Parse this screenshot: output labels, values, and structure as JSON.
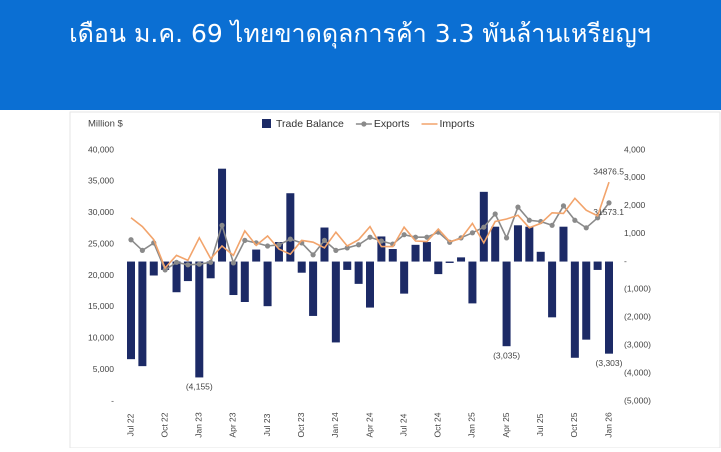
{
  "chart_data": {
    "type": "bar",
    "title": "เดือน ม.ค. 69 ไทยขาดดุลการค้า 3.3 พันล้านเหรียญฯ",
    "y_label": "Million $",
    "categories": [
      "Jul 22",
      null,
      null,
      "Oct 22",
      null,
      null,
      "Jan 23",
      null,
      null,
      "Apr 23",
      null,
      null,
      "Jul 23",
      null,
      null,
      "Oct 23",
      null,
      null,
      "Jan 24",
      null,
      null,
      "Apr 24",
      null,
      null,
      "Jul 24",
      null,
      null,
      "Oct 24",
      null,
      null,
      "Jan 25",
      null,
      null,
      "Apr 25",
      null,
      null,
      "Jul 25",
      null,
      null,
      "Oct 25",
      null,
      null,
      "Jan 26"
    ],
    "ylim": [
      0,
      40000
    ],
    "yticks": [
      {
        "value": 0,
        "label": "-"
      },
      {
        "value": 5000,
        "label": "5,000"
      },
      {
        "value": 10000,
        "label": "10,000"
      },
      {
        "value": 15000,
        "label": "15,000"
      },
      {
        "value": 20000,
        "label": "20,000"
      },
      {
        "value": 25000,
        "label": "25,000"
      },
      {
        "value": 30000,
        "label": "30,000"
      },
      {
        "value": 35000,
        "label": "35,000"
      },
      {
        "value": 40000,
        "label": "40,000"
      }
    ],
    "y2lim": [
      -5000,
      4000
    ],
    "y2ticks": [
      {
        "value": -5000,
        "label": "(5,000)"
      },
      {
        "value": -4000,
        "label": "(4,000)"
      },
      {
        "value": -3000,
        "label": "(3,000)"
      },
      {
        "value": -2000,
        "label": "(2,000)"
      },
      {
        "value": -1000,
        "label": "(1,000)"
      },
      {
        "value": 0,
        "label": "-"
      },
      {
        "value": 1000,
        "label": "1,000"
      },
      {
        "value": 2000,
        "label": "2,000"
      },
      {
        "value": 3000,
        "label": "3,000"
      },
      {
        "value": 4000,
        "label": "4,000"
      }
    ],
    "series": [
      {
        "name": "Trade Balance",
        "type": "bar",
        "axis": "y2",
        "color": "#1c2a66",
        "values": [
          -3500,
          -3750,
          -500,
          -300,
          -1100,
          -700,
          -4155,
          -600,
          3330,
          -1200,
          -1450,
          430,
          -1600,
          700,
          2450,
          -400,
          -1950,
          1220,
          -2900,
          -300,
          -800,
          -1650,
          900,
          450,
          -1150,
          600,
          700,
          -450,
          -50,
          150,
          -1500,
          2500,
          1250,
          -3035,
          1300,
          1250,
          350,
          -2000,
          1250,
          -3450,
          -2800,
          -300,
          -3303
        ],
        "value_labels": [
          null,
          null,
          null,
          null,
          null,
          null,
          "(4,155)",
          null,
          null,
          null,
          null,
          null,
          null,
          null,
          null,
          null,
          null,
          null,
          null,
          null,
          null,
          null,
          null,
          null,
          null,
          null,
          null,
          null,
          null,
          null,
          null,
          null,
          null,
          "(3,035)",
          null,
          null,
          null,
          null,
          null,
          null,
          null,
          null,
          "(3,303)"
        ],
        "label_color": "#e0231c"
      },
      {
        "name": "Exports",
        "type": "line",
        "color": "#8a8a8a",
        "markers": true,
        "values": [
          25700,
          24000,
          25200,
          20900,
          22100,
          21700,
          21800,
          22100,
          28000,
          22000,
          25600,
          25200,
          24700,
          24900,
          25800,
          25200,
          23300,
          25600,
          24000,
          24400,
          24900,
          26100,
          25500,
          25000,
          26500,
          26100,
          26100,
          26900,
          25300,
          26000,
          26800,
          27700,
          29800,
          26000,
          30900,
          28800,
          28600,
          28000,
          31100,
          28800,
          27600,
          29200,
          31573.1
        ],
        "label_last": true
      },
      {
        "name": "Imports",
        "type": "line",
        "color": "#f2a46c",
        "markers": false,
        "values": [
          29200,
          27800,
          25700,
          21200,
          23200,
          22400,
          26000,
          22700,
          24700,
          23200,
          27100,
          24800,
          26300,
          24200,
          23400,
          25600,
          25300,
          24400,
          26900,
          24700,
          25700,
          27800,
          24600,
          24600,
          27700,
          25500,
          25400,
          27400,
          25400,
          25900,
          28300,
          25200,
          28600,
          29000,
          29600,
          27600,
          28300,
          30000,
          29900,
          32300,
          30400,
          29500,
          34876.5
        ],
        "label_last": true,
        "label_color": "#e0231c"
      }
    ]
  }
}
